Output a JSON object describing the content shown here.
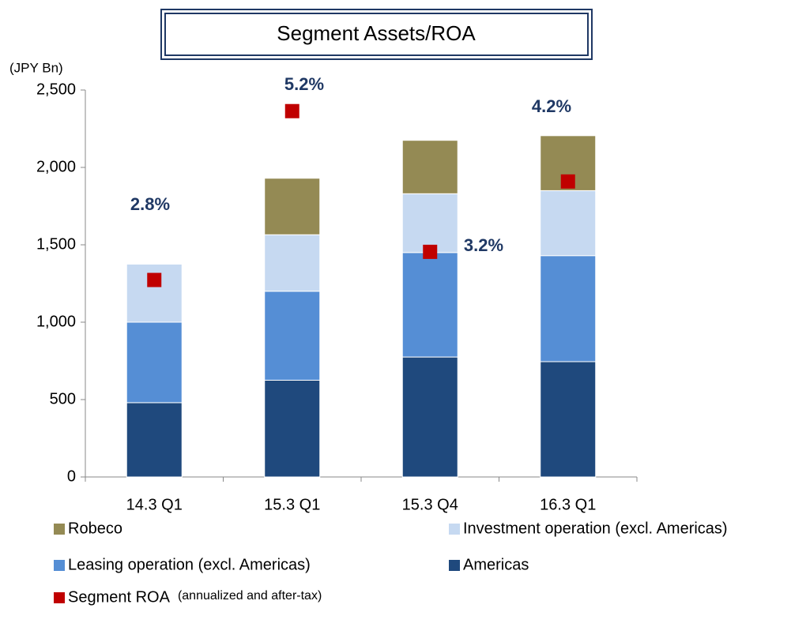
{
  "chart_data": {
    "type": "bar",
    "stacked": true,
    "title": "Segment Assets/ROA",
    "y_label": "(JPY Bn)",
    "categories": [
      "14.3 Q1",
      "15.3 Q1",
      "15.3 Q4",
      "16.3 Q1"
    ],
    "ylim": [
      0,
      2500
    ],
    "yticks": [
      0,
      500,
      {
        "value": 1000,
        "label": "1,000"
      },
      {
        "value": 1500,
        "label": "1,500"
      },
      {
        "value": 2000,
        "label": "2,000"
      },
      {
        "value": 2500,
        "label": "2,500"
      }
    ],
    "y2lim": [
      0,
      5.5
    ],
    "series": [
      {
        "name": "Americas",
        "color": "#1f497d",
        "values": [
          480,
          625,
          775,
          745
        ]
      },
      {
        "name": "Leasing operation (excl. Americas)",
        "color": "#558ed5",
        "values": [
          520,
          575,
          675,
          685
        ]
      },
      {
        "name": "Investment operation (excl. Americas)",
        "color": "#c6d9f1",
        "values": [
          375,
          365,
          380,
          420
        ]
      },
      {
        "name": "Robeco",
        "color": "#948a54",
        "values": [
          0,
          365,
          345,
          355
        ]
      },
      {
        "name": "Segment ROA",
        "type": "scatter",
        "axis": "y2",
        "color": "#c00000",
        "values": [
          2.8,
          5.2,
          3.2,
          4.2
        ],
        "value_labels": [
          "2.8%",
          "5.2%",
          "3.2%",
          "4.2%"
        ]
      }
    ],
    "legend_note": "(annualized and after-tax)"
  }
}
